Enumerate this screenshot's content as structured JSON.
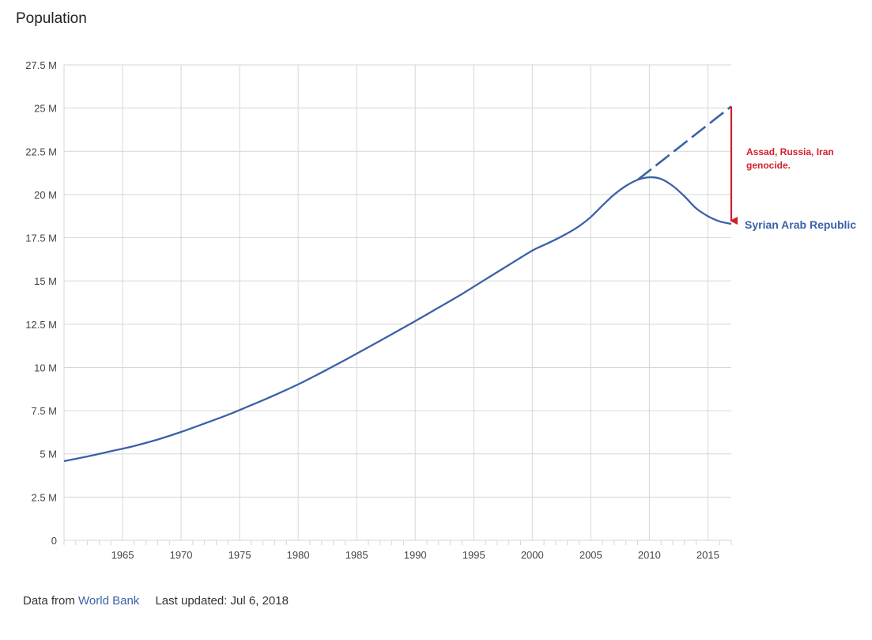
{
  "title": "Population",
  "footer": {
    "data_prefix": "Data from",
    "source_link": "World Bank",
    "last_updated": "Last updated: Jul 6, 2018"
  },
  "colors": {
    "line": "#3a62a8",
    "grid": "#d6d6d6",
    "annotation": "#d21f2c",
    "axis_text": "#444444"
  },
  "chart_data": {
    "type": "line",
    "title": "Population",
    "xlabel": "",
    "ylabel": "",
    "xlim": [
      1960,
      2017
    ],
    "ylim": [
      0,
      27500000
    ],
    "x_ticks": [
      1965,
      1970,
      1975,
      1980,
      1985,
      1990,
      1995,
      2000,
      2005,
      2010,
      2015
    ],
    "y_ticks": [
      {
        "value": 0,
        "label": "0"
      },
      {
        "value": 2500000,
        "label": "2.5 M"
      },
      {
        "value": 5000000,
        "label": "5 M"
      },
      {
        "value": 7500000,
        "label": "7.5 M"
      },
      {
        "value": 10000000,
        "label": "10 M"
      },
      {
        "value": 12500000,
        "label": "12.5 M"
      },
      {
        "value": 15000000,
        "label": "15 M"
      },
      {
        "value": 17500000,
        "label": "17.5 M"
      },
      {
        "value": 20000000,
        "label": "20 M"
      },
      {
        "value": 22500000,
        "label": "22.5 M"
      },
      {
        "value": 25000000,
        "label": "25 M"
      },
      {
        "value": 27500000,
        "label": "27.5 M"
      }
    ],
    "grid": true,
    "series": [
      {
        "name": "Syrian Arab Republic",
        "x": [
          1960,
          1962,
          1964,
          1966,
          1968,
          1970,
          1972,
          1974,
          1976,
          1978,
          1980,
          1982,
          1984,
          1986,
          1988,
          1990,
          1992,
          1994,
          1996,
          1998,
          2000,
          2001,
          2002,
          2003,
          2004,
          2005,
          2006,
          2007,
          2008,
          2009,
          2010,
          2011,
          2012,
          2013,
          2014,
          2015,
          2016,
          2017
        ],
        "values": [
          4580000,
          4850000,
          5150000,
          5460000,
          5830000,
          6270000,
          6760000,
          7260000,
          7820000,
          8400000,
          9020000,
          9710000,
          10430000,
          11170000,
          11920000,
          12680000,
          13460000,
          14250000,
          15090000,
          15930000,
          16760000,
          17080000,
          17400000,
          17760000,
          18170000,
          18700000,
          19370000,
          20000000,
          20500000,
          20850000,
          21000000,
          20900000,
          20500000,
          19900000,
          19200000,
          18750000,
          18450000,
          18300000
        ]
      }
    ],
    "projection": {
      "style": "dashed",
      "x": [
        2009,
        2017
      ],
      "values": [
        20850000,
        25100000
      ]
    },
    "annotations": [
      {
        "text": "Assad, Russia, Iran",
        "text2": "genocide.",
        "x": 2017,
        "from": 25100000,
        "to": 18300000
      }
    ]
  }
}
